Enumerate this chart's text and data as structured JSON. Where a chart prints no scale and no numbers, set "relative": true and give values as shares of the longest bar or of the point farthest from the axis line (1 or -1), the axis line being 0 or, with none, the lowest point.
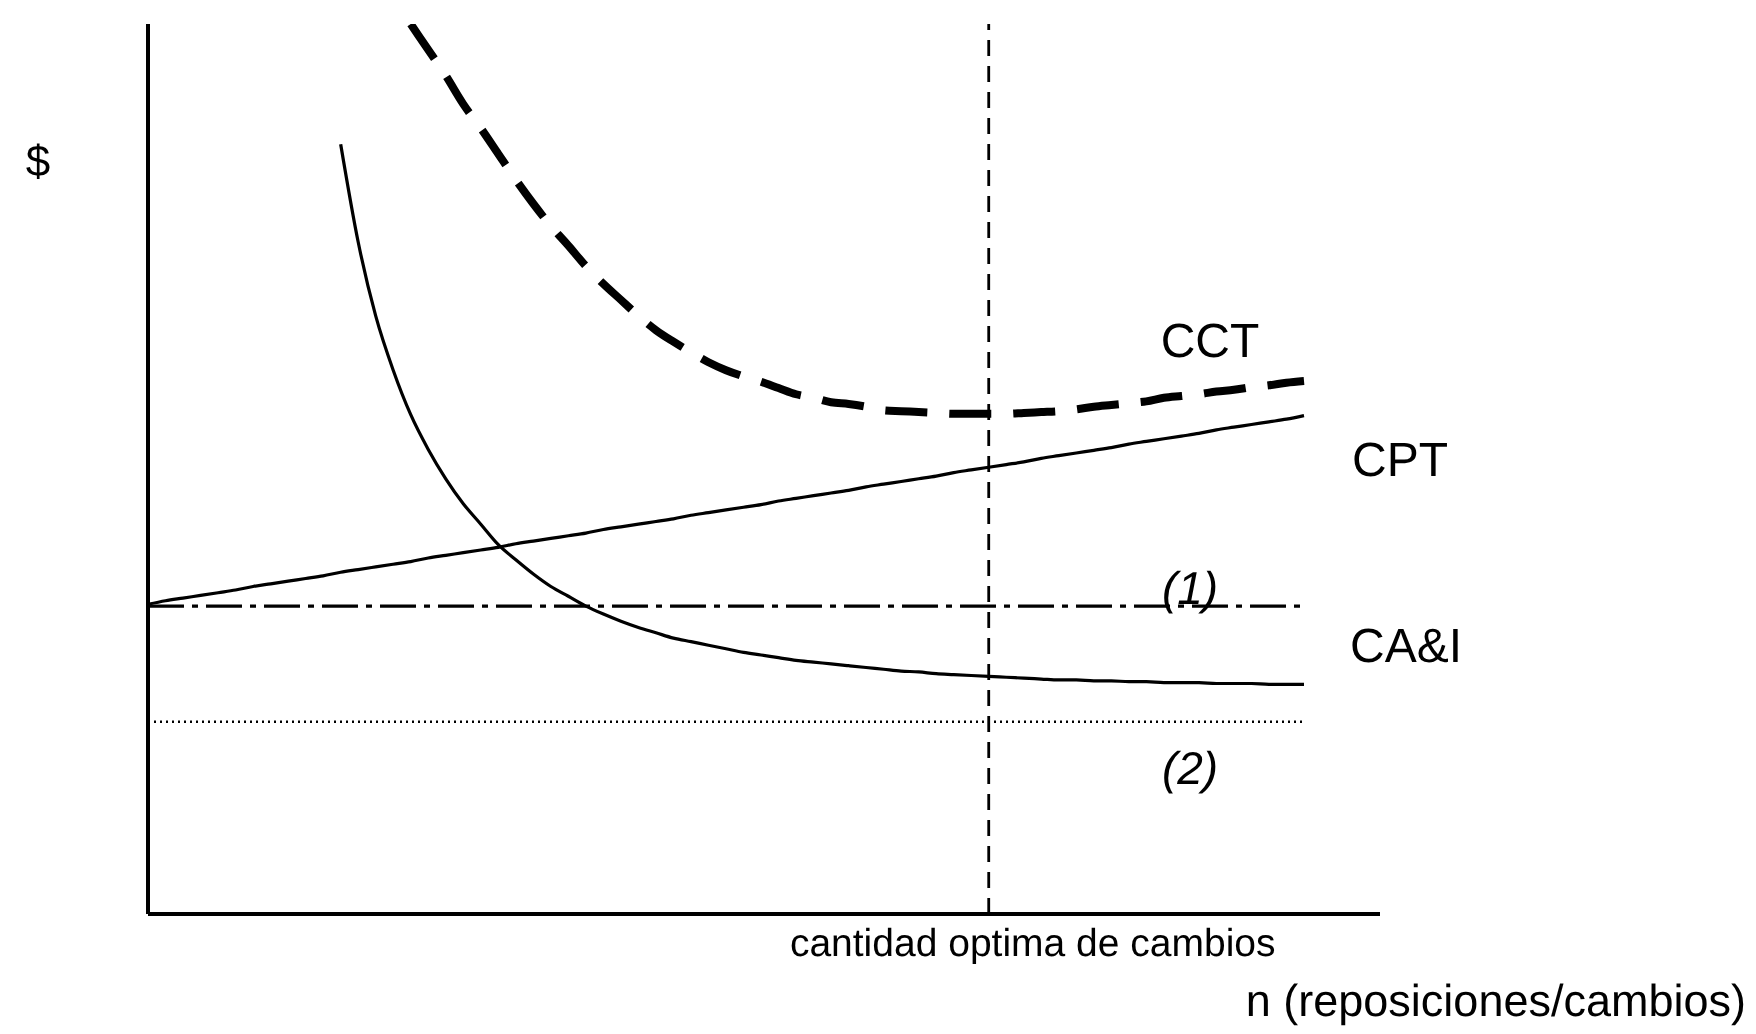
{
  "chart_data": {
    "type": "line",
    "relative": true,
    "tick_labels": false,
    "ylabel": "$",
    "xlabel": "n (reposiciones/cambios)",
    "line_style": "solid",
    "annotations": [
      "cantidad optima de cambios"
    ],
    "categories": [
      null,
      null,
      null,
      null,
      null,
      null,
      null,
      null,
      null,
      null,
      null,
      null,
      null,
      null,
      null,
      null,
      null,
      null,
      null,
      null,
      null,
      null,
      null,
      null,
      null,
      null,
      null,
      null,
      null,
      null,
      null,
      null,
      null,
      null,
      null,
      null,
      null,
      null,
      null,
      null,
      null,
      null,
      null,
      null,
      null,
      null,
      null,
      null,
      null,
      null,
      null,
      null,
      null,
      null,
      null,
      null,
      null,
      null,
      null,
      null,
      null,
      null,
      null,
      null,
      null,
      null,
      null
    ],
    "series": [
      {
        "name": "CCT",
        "color": "#000000",
        "line_style": "dashed",
        "values": [
          null,
          null,
          null,
          null,
          null,
          null,
          null,
          null,
          null,
          null,
          null,
          null,
          null,
          null,
          null,
          1,
          0.971,
          0.942,
          0.91,
          0.883,
          0.854,
          0.825,
          0.798,
          0.773,
          0.751,
          0.728,
          0.708,
          0.69,
          0.672,
          0.656,
          0.643,
          0.631,
          0.62,
          0.611,
          0.604,
          0.598,
          0.591,
          0.584,
          0.58,
          0.575,
          0.573,
          0.57,
          0.566,
          0.565,
          0.564,
          0.563,
          0.562,
          0.562,
          0.562,
          0.562,
          0.563,
          0.564,
          0.565,
          0.567,
          0.57,
          0.572,
          0.574,
          0.576,
          0.58,
          0.582,
          0.584,
          0.587,
          0.589,
          0.592,
          0.594,
          0.597,
          0.599
        ]
      },
      {
        "name": "CPT",
        "color": "#000000",
        "values": [
          0.348,
          0.352,
          0.355,
          0.358,
          0.361,
          0.364,
          0.368,
          0.371,
          0.374,
          0.377,
          0.38,
          0.384,
          0.387,
          0.39,
          0.393,
          0.396,
          0.4,
          0.403,
          0.406,
          0.409,
          0.412,
          0.416,
          0.419,
          0.422,
          0.425,
          0.428,
          0.432,
          0.435,
          0.438,
          0.441,
          0.444,
          0.448,
          0.451,
          0.454,
          0.457,
          0.46,
          0.464,
          0.467,
          0.47,
          0.473,
          0.476,
          0.48,
          0.483,
          0.486,
          0.489,
          0.492,
          0.496,
          0.499,
          0.502,
          0.505,
          0.508,
          0.512,
          0.515,
          0.518,
          0.521,
          0.524,
          0.528,
          0.531,
          0.534,
          0.537,
          0.54,
          0.544,
          0.547,
          0.55,
          0.553,
          0.556,
          0.56
        ]
      },
      {
        "name": "CA&I",
        "color": "#000000",
        "values": [
          null,
          null,
          null,
          null,
          null,
          null,
          null,
          null,
          null,
          null,
          null,
          0.865,
          0.755,
          0.672,
          0.611,
          0.561,
          0.522,
          0.489,
          0.461,
          0.438,
          0.415,
          0.398,
          0.382,
          0.368,
          0.357,
          0.346,
          0.337,
          0.329,
          0.322,
          0.316,
          0.31,
          0.306,
          0.302,
          0.298,
          0.294,
          0.291,
          0.288,
          0.285,
          0.283,
          0.281,
          0.279,
          0.277,
          0.275,
          0.273,
          0.272,
          0.27,
          0.269,
          0.268,
          0.267,
          0.266,
          0.265,
          0.264,
          0.263,
          0.263,
          0.262,
          0.262,
          0.261,
          0.261,
          0.26,
          0.26,
          0.26,
          0.259,
          0.259,
          0.259,
          0.258,
          0.258,
          0.258
        ]
      },
      {
        "name": "(1)",
        "color": "#000000",
        "line_style": "dashdot",
        "values": [
          0.346,
          0.346,
          0.346,
          0.346,
          0.346,
          0.346,
          0.346,
          0.346,
          0.346,
          0.346,
          0.346,
          0.346,
          0.346,
          0.346,
          0.346,
          0.346,
          0.346,
          0.346,
          0.346,
          0.346,
          0.346,
          0.346,
          0.346,
          0.346,
          0.346,
          0.346,
          0.346,
          0.346,
          0.346,
          0.346,
          0.346,
          0.346,
          0.346,
          0.346,
          0.346,
          0.346,
          0.346,
          0.346,
          0.346,
          0.346,
          0.346,
          0.346,
          0.346,
          0.346,
          0.346,
          0.346,
          0.346,
          0.346,
          0.346,
          0.346,
          0.346,
          0.346,
          0.346,
          0.346,
          0.346,
          0.346,
          0.346,
          0.346,
          0.346,
          0.346,
          0.346,
          0.346,
          0.346,
          0.346,
          0.346,
          0.346,
          0.346
        ]
      },
      {
        "name": "(2)",
        "color": "#000000",
        "line_style": "dotted",
        "values": [
          0.216,
          0.216,
          0.216,
          0.216,
          0.216,
          0.216,
          0.216,
          0.216,
          0.216,
          0.216,
          0.216,
          0.216,
          0.216,
          0.216,
          0.216,
          0.216,
          0.216,
          0.216,
          0.216,
          0.216,
          0.216,
          0.216,
          0.216,
          0.216,
          0.216,
          0.216,
          0.216,
          0.216,
          0.216,
          0.216,
          0.216,
          0.216,
          0.216,
          0.216,
          0.216,
          0.216,
          0.216,
          0.216,
          0.216,
          0.216,
          0.216,
          0.216,
          0.216,
          0.216,
          0.216,
          0.216,
          0.216,
          0.216,
          0.216,
          0.216,
          0.216,
          0.216,
          0.216,
          0.216,
          0.216,
          0.216,
          0.216,
          0.216,
          0.216,
          0.216,
          0.216,
          0.216,
          0.216,
          0.216,
          0.216,
          0.216,
          0.216
        ]
      }
    ]
  }
}
